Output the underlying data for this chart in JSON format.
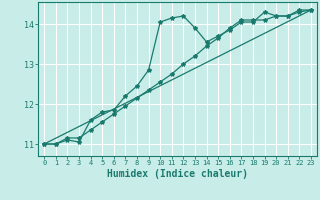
{
  "xlabel": "Humidex (Indice chaleur)",
  "bg_color": "#c8ede8",
  "grid_color": "#ffffff",
  "line_color": "#1a7a6e",
  "xlim": [
    -0.5,
    23.5
  ],
  "ylim": [
    10.7,
    14.55
  ],
  "xticks": [
    0,
    1,
    2,
    3,
    4,
    5,
    6,
    7,
    8,
    9,
    10,
    11,
    12,
    13,
    14,
    15,
    16,
    17,
    18,
    19,
    20,
    21,
    22,
    23
  ],
  "yticks": [
    11,
    12,
    13,
    14
  ],
  "line1_x": [
    0,
    1,
    2,
    3,
    4,
    5,
    6,
    7,
    8,
    9,
    10,
    11,
    12,
    13,
    14,
    15,
    16,
    17,
    18,
    19,
    20,
    21,
    22,
    23
  ],
  "line1_y": [
    11.0,
    11.0,
    11.1,
    11.05,
    11.6,
    11.8,
    11.85,
    12.2,
    12.45,
    12.85,
    14.05,
    14.15,
    14.2,
    13.9,
    13.55,
    13.7,
    13.85,
    14.05,
    14.05,
    14.3,
    14.2,
    14.2,
    14.35,
    14.35
  ],
  "line2_x": [
    0,
    1,
    2,
    3,
    4,
    5,
    6,
    7,
    8,
    9,
    10,
    11,
    12,
    13,
    14,
    15,
    16,
    17,
    18,
    19,
    20,
    21,
    22,
    23
  ],
  "line2_y": [
    11.0,
    11.0,
    11.15,
    11.15,
    11.35,
    11.55,
    11.75,
    11.95,
    12.15,
    12.35,
    12.55,
    12.75,
    13.0,
    13.2,
    13.45,
    13.65,
    13.9,
    14.1,
    14.1,
    14.1,
    14.2,
    14.2,
    14.3,
    14.35
  ],
  "line3_x": [
    0,
    23
  ],
  "line3_y": [
    11.0,
    14.35
  ],
  "marker": "*",
  "markersize": 3,
  "linewidth": 0.9,
  "xlabel_fontsize": 7,
  "xtick_fontsize": 5,
  "ytick_fontsize": 6
}
